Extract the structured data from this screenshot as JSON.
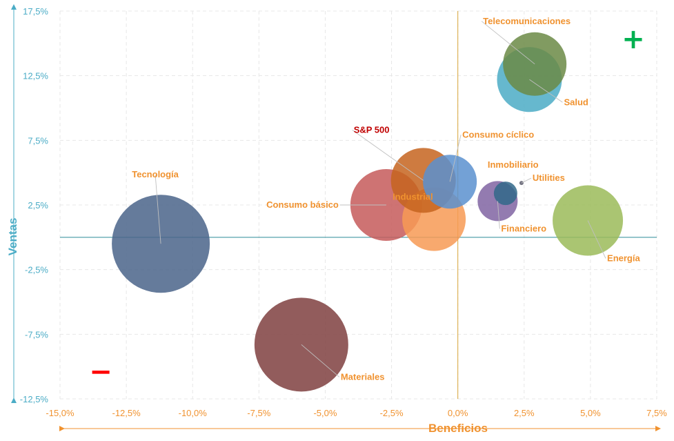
{
  "chart_data": {
    "type": "bubble",
    "xlabel": "Beneficios",
    "ylabel": "Ventas",
    "xlim": [
      -15,
      7.5
    ],
    "ylim": [
      -12.5,
      17.5
    ],
    "xticks": [
      -15,
      -12.5,
      -10,
      -7.5,
      -5,
      -2.5,
      0,
      2.5,
      5,
      7.5
    ],
    "yticks": [
      -12.5,
      -7.5,
      -2.5,
      2.5,
      7.5,
      12.5,
      17.5
    ],
    "x_tick_labels": [
      "-15,0%",
      "-12,5%",
      "-10,0%",
      "-7,5%",
      "-5,0%",
      "-2,5%",
      "0,0%",
      "2,5%",
      "5,0%",
      "7,5%"
    ],
    "y_tick_labels": [
      "-12,5%",
      "-7,5%",
      "-2,5%",
      "2,5%",
      "7,5%",
      "12,5%",
      "17,5%"
    ],
    "grid": true,
    "reference_lines": {
      "x": 0,
      "y": 0
    },
    "positive_marker": "+",
    "negative_marker": "−",
    "series": [
      {
        "name": "Tecnología",
        "x": -11.2,
        "y": -0.5,
        "size": 71,
        "color": "#4a6489"
      },
      {
        "name": "Materiales",
        "x": -5.9,
        "y": -8.3,
        "size": 68,
        "color": "#7f3f3f"
      },
      {
        "name": "Consumo básico",
        "x": -2.7,
        "y": 2.5,
        "size": 52,
        "color": "#c65a5a"
      },
      {
        "name": "Industrial",
        "x": -0.9,
        "y": 1.4,
        "size": 46,
        "color": "#f79a55"
      },
      {
        "name": "S&P 500",
        "x": -1.3,
        "y": 4.4,
        "size": 47,
        "color": "#c6641e"
      },
      {
        "name": "Consumo cíclico",
        "x": -0.3,
        "y": 4.3,
        "size": 39,
        "color": "#5b91cf"
      },
      {
        "name": "Financiero",
        "x": 1.5,
        "y": 2.8,
        "size": 29,
        "color": "#8064a2"
      },
      {
        "name": "Inmobiliario",
        "x": 1.8,
        "y": 3.4,
        "size": 17,
        "color": "#31698a"
      },
      {
        "name": "Utilities",
        "x": 2.4,
        "y": 4.2,
        "size": 3,
        "color": "#5e5e6e"
      },
      {
        "name": "Energía",
        "x": 4.9,
        "y": 1.3,
        "size": 51,
        "color": "#9bbb59"
      },
      {
        "name": "Salud",
        "x": 2.7,
        "y": 12.2,
        "size": 47,
        "color": "#4bacc6"
      },
      {
        "name": "Telecomunicaciones",
        "x": 2.9,
        "y": 13.4,
        "size": 46,
        "color": "#6b8a45"
      }
    ]
  },
  "colors": {
    "x_axis": "#f0922f",
    "y_axis": "#4bacc6",
    "label_default": "#f0922f",
    "label_benchmark": "#c00000",
    "positive_marker": "#00b050",
    "negative_marker": "#ff0000",
    "grid": "#e7e7e7"
  }
}
